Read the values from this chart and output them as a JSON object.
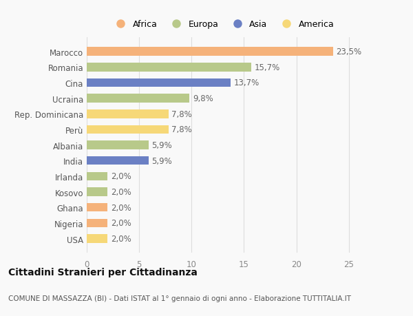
{
  "categories": [
    "Marocco",
    "Romania",
    "Cina",
    "Ucraina",
    "Rep. Dominicana",
    "Perù",
    "Albania",
    "India",
    "Irlanda",
    "Kosovo",
    "Ghana",
    "Nigeria",
    "USA"
  ],
  "values": [
    23.5,
    15.7,
    13.7,
    9.8,
    7.8,
    7.8,
    5.9,
    5.9,
    2.0,
    2.0,
    2.0,
    2.0,
    2.0
  ],
  "labels": [
    "23,5%",
    "15,7%",
    "13,7%",
    "9,8%",
    "7,8%",
    "7,8%",
    "5,9%",
    "5,9%",
    "2,0%",
    "2,0%",
    "2,0%",
    "2,0%",
    "2,0%"
  ],
  "colors": [
    "#F5B27A",
    "#B8C98A",
    "#6B80C4",
    "#B8C98A",
    "#F6D878",
    "#F6D878",
    "#B8C98A",
    "#6B80C4",
    "#B8C98A",
    "#B8C98A",
    "#F5B27A",
    "#F5B27A",
    "#F6D878"
  ],
  "legend_labels": [
    "Africa",
    "Europa",
    "Asia",
    "America"
  ],
  "legend_colors": [
    "#F5B27A",
    "#B8C98A",
    "#6B80C4",
    "#F6D878"
  ],
  "xlim": [
    0,
    26
  ],
  "xticks": [
    0,
    5,
    10,
    15,
    20,
    25
  ],
  "title": "Cittadini Stranieri per Cittadinanza",
  "subtitle": "COMUNE DI MASSAZZA (BI) - Dati ISTAT al 1° gennaio di ogni anno - Elaborazione TUTTITALIA.IT",
  "background_color": "#f9f9f9",
  "bar_height": 0.55,
  "label_fontsize": 8.5,
  "ytick_fontsize": 8.5,
  "xtick_fontsize": 8.5,
  "title_fontsize": 10,
  "subtitle_fontsize": 7.5
}
